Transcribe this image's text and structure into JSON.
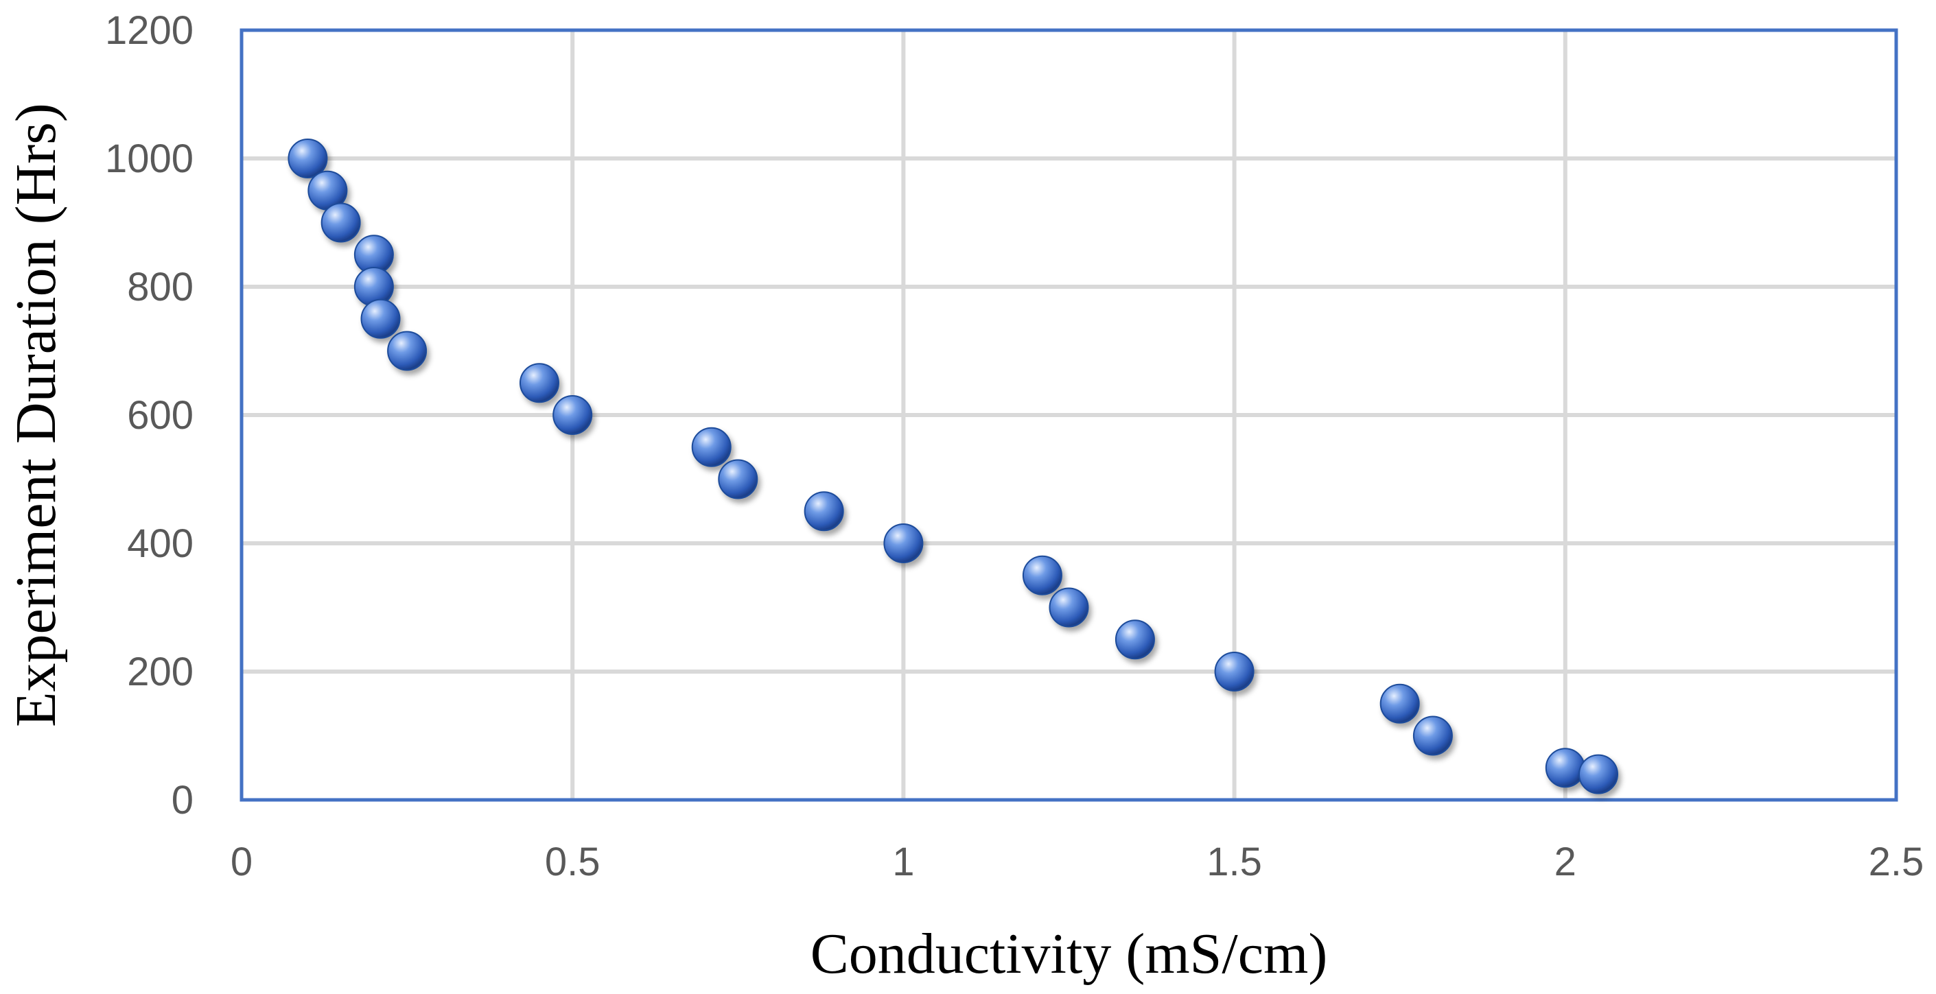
{
  "chart_data": {
    "type": "scatter",
    "xlabel": "Conductivity (mS/cm)",
    "ylabel": "Experiment Duration (Hrs)",
    "xlim": [
      0,
      2.5
    ],
    "ylim": [
      0,
      1200
    ],
    "x_ticks": [
      "0",
      "0.5",
      "1",
      "1.5",
      "2",
      "2.5"
    ],
    "y_ticks": [
      "0",
      "200",
      "400",
      "600",
      "800",
      "1000",
      "1200"
    ],
    "grid": true,
    "legend": "none",
    "colors": {
      "marker": "#4472c4",
      "frame": "#4472c4",
      "grid": "#d9d9d9"
    },
    "series": [
      {
        "x": [
          0.1,
          0.13,
          0.15,
          0.2,
          0.2,
          0.21,
          0.25,
          0.45,
          0.5,
          0.71,
          0.75,
          0.88,
          1.0,
          1.21,
          1.25,
          1.35,
          1.5,
          1.75,
          1.8,
          2.0,
          2.05
        ],
        "y": [
          1000,
          950,
          900,
          850,
          800,
          750,
          700,
          650,
          600,
          550,
          500,
          450,
          400,
          350,
          300,
          250,
          200,
          150,
          100,
          50,
          40
        ]
      }
    ]
  }
}
